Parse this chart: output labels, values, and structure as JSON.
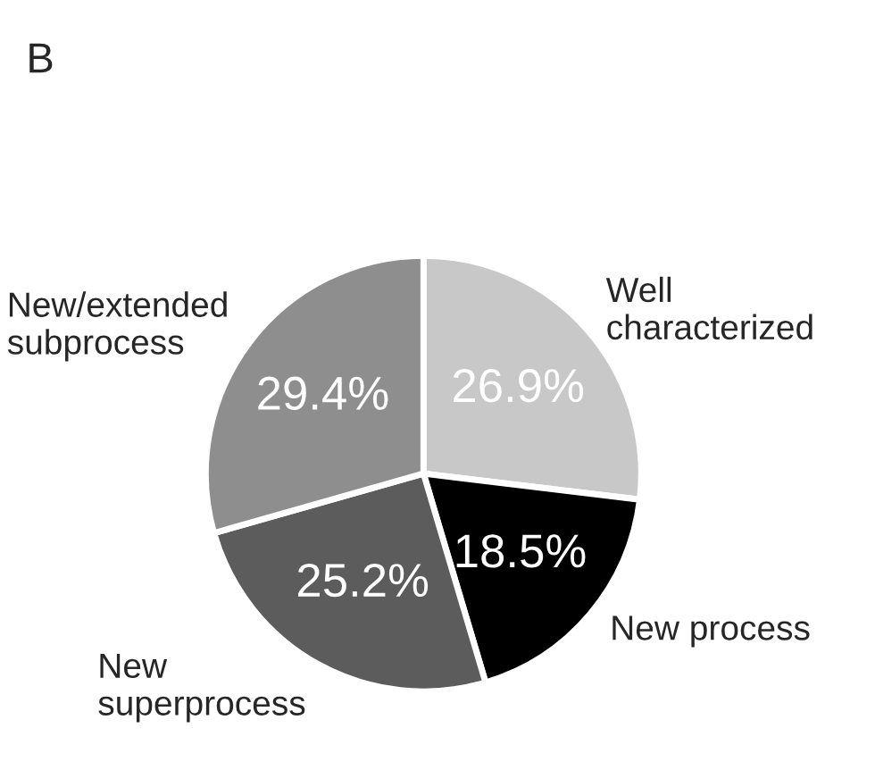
{
  "chart_data": {
    "type": "pie",
    "title": "B",
    "categories": [
      "Well\ncharacterized",
      "New process",
      "New\nsuperprocess",
      "New/extended\nsubprocess"
    ],
    "values": [
      26.9,
      18.5,
      25.2,
      29.4
    ],
    "value_labels": [
      "26.9%",
      "18.5%",
      "25.2%",
      "29.4%"
    ],
    "colors": [
      "#c8c8c8",
      "#000000",
      "#5c5c5c",
      "#8e8e8e"
    ],
    "legend": false
  }
}
